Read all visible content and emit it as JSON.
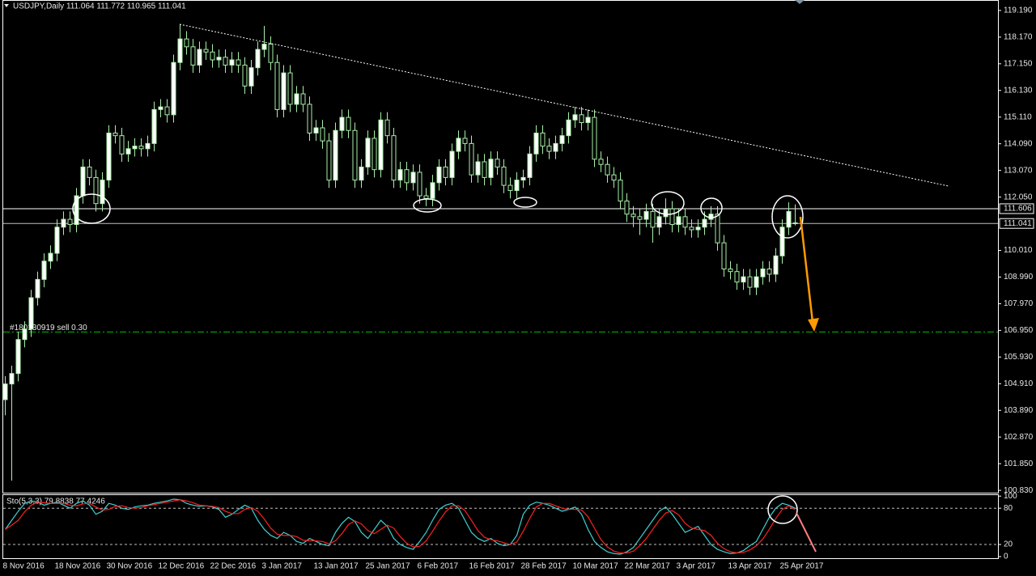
{
  "chart_data": [
    {
      "type": "candlestick",
      "title": "USDJPY,Daily  111.064 111.772 110.965 111.041",
      "categories": [
        "8 Nov 2016",
        null,
        null,
        null,
        null,
        null,
        null,
        null,
        "18 Nov 2016",
        null,
        null,
        null,
        null,
        null,
        null,
        null,
        "30 Nov 2016",
        null,
        null,
        null,
        null,
        null,
        null,
        null,
        "12 Dec 2016",
        null,
        null,
        null,
        null,
        null,
        null,
        null,
        "22 Dec 2016",
        null,
        null,
        null,
        null,
        null,
        null,
        null,
        "3 Jan 2017",
        null,
        null,
        null,
        null,
        null,
        null,
        null,
        "13 Jan 2017",
        null,
        null,
        null,
        null,
        null,
        null,
        null,
        "25 Jan 2017",
        null,
        null,
        null,
        null,
        null,
        null,
        null,
        "6 Feb 2017",
        null,
        null,
        null,
        null,
        null,
        null,
        null,
        "16 Feb 2017",
        null,
        null,
        null,
        null,
        null,
        null,
        null,
        "28 Feb 2017",
        null,
        null,
        null,
        null,
        null,
        null,
        null,
        "10 Mar 2017",
        null,
        null,
        null,
        null,
        null,
        null,
        null,
        "22 Mar 2017",
        null,
        null,
        null,
        null,
        null,
        null,
        null,
        "3 Apr 2017",
        null,
        null,
        null,
        null,
        null,
        null,
        null,
        "13 Apr 2017",
        null,
        null,
        null,
        null,
        null,
        null,
        null,
        "25 Apr 2017",
        null,
        null
      ],
      "open": [
        104.3,
        104.9,
        105.3,
        106.6,
        107.0,
        108.2,
        108.9,
        109.6,
        109.9,
        110.9,
        111.2,
        111.0,
        112.1,
        113.2,
        112.8,
        111.8,
        112.7,
        114.5,
        114.4,
        113.7,
        113.9,
        114.0,
        113.9,
        114.1,
        115.4,
        115.5,
        115.2,
        117.2,
        118.1,
        117.8,
        117.1,
        117.7,
        117.6,
        117.3,
        117.4,
        117.1,
        117.3,
        117.1,
        116.3,
        117.0,
        117.7,
        117.9,
        117.2,
        115.4,
        116.8,
        115.6,
        116.0,
        115.6,
        114.5,
        114.7,
        114.2,
        112.7,
        114.6,
        115.1,
        114.6,
        112.7,
        113.2,
        114.3,
        113.1,
        115.0,
        114.4,
        112.7,
        113.1,
        112.6,
        113.0,
        112.1,
        112.0,
        112.6,
        113.2,
        112.8,
        113.8,
        114.3,
        114.1,
        112.9,
        113.4,
        112.8,
        113.5,
        113.2,
        112.5,
        112.3,
        112.7,
        112.8,
        113.7,
        114.5,
        114.0,
        113.8,
        114.1,
        114.4,
        115.0,
        115.2,
        114.9,
        115.1,
        113.5,
        113.3,
        112.9,
        112.7,
        111.9,
        111.4,
        111.3,
        111.2,
        111.5,
        110.9,
        111.3,
        111.6,
        111.0,
        111.3,
        110.9,
        110.8,
        110.9,
        111.2,
        111.4,
        110.3,
        109.3,
        109.2,
        108.8,
        109.0,
        108.6,
        109.0,
        109.3,
        109.1,
        109.8,
        110.9,
        111.064
      ],
      "high": [
        105.2,
        105.6,
        106.9,
        107.3,
        108.5,
        109.2,
        109.9,
        110.2,
        111.2,
        111.5,
        111.5,
        112.4,
        113.5,
        113.5,
        113.1,
        113.0,
        114.8,
        114.8,
        114.7,
        114.2,
        114.3,
        114.3,
        114.4,
        115.7,
        115.8,
        115.8,
        117.5,
        118.66,
        118.4,
        118.1,
        118.0,
        118.0,
        117.9,
        117.7,
        117.7,
        117.6,
        117.6,
        117.4,
        117.3,
        118.0,
        118.6,
        118.2,
        117.5,
        117.1,
        117.1,
        116.3,
        116.3,
        115.9,
        115.0,
        115.0,
        114.5,
        114.9,
        115.4,
        115.4,
        114.9,
        113.5,
        114.6,
        114.6,
        115.3,
        115.3,
        114.7,
        113.4,
        113.4,
        113.3,
        113.3,
        112.4,
        112.9,
        113.5,
        113.5,
        114.1,
        114.6,
        114.6,
        114.4,
        113.7,
        113.7,
        113.8,
        113.8,
        113.5,
        112.8,
        113.0,
        113.1,
        114.0,
        114.8,
        114.8,
        114.3,
        114.4,
        114.7,
        115.3,
        115.5,
        115.5,
        115.4,
        115.4,
        113.8,
        113.6,
        113.2,
        113.0,
        112.2,
        111.7,
        111.6,
        111.8,
        111.8,
        111.6,
        112.0,
        111.9,
        111.6,
        111.6,
        111.2,
        111.2,
        111.5,
        111.7,
        111.7,
        110.6,
        109.6,
        109.5,
        109.3,
        109.3,
        109.3,
        109.6,
        109.6,
        110.1,
        111.2,
        111.85,
        111.772
      ],
      "low": [
        103.7,
        101.2,
        105.0,
        106.3,
        106.7,
        107.9,
        108.6,
        109.3,
        109.6,
        110.6,
        110.7,
        110.7,
        111.8,
        112.5,
        111.5,
        111.5,
        112.4,
        114.1,
        113.4,
        113.4,
        113.6,
        113.6,
        113.6,
        113.8,
        115.1,
        114.9,
        114.9,
        116.9,
        117.5,
        116.8,
        116.8,
        117.3,
        117.0,
        117.0,
        116.8,
        116.8,
        116.8,
        116.0,
        116.0,
        116.7,
        117.4,
        116.9,
        115.1,
        115.1,
        115.3,
        115.3,
        115.3,
        114.2,
        114.2,
        113.9,
        112.4,
        112.4,
        114.3,
        114.3,
        112.4,
        112.4,
        112.9,
        112.8,
        112.8,
        114.1,
        112.4,
        112.4,
        112.3,
        112.3,
        111.8,
        111.7,
        111.7,
        112.3,
        112.5,
        112.5,
        113.5,
        113.8,
        112.6,
        112.6,
        112.5,
        112.5,
        112.9,
        112.2,
        112.0,
        112.0,
        112.4,
        112.5,
        113.4,
        113.7,
        113.5,
        113.5,
        113.8,
        114.1,
        114.7,
        114.6,
        114.6,
        113.2,
        113.0,
        112.6,
        112.4,
        111.6,
        111.1,
        110.9,
        110.6,
        110.9,
        110.3,
        110.6,
        111.0,
        110.7,
        110.7,
        110.6,
        110.5,
        110.5,
        110.6,
        110.9,
        110.0,
        109.0,
        108.9,
        108.5,
        108.5,
        108.3,
        108.3,
        108.7,
        108.8,
        108.8,
        109.5,
        110.6,
        110.965
      ],
      "close": [
        104.9,
        105.3,
        106.6,
        107.0,
        108.2,
        108.9,
        109.6,
        109.9,
        110.9,
        111.2,
        111.0,
        112.1,
        113.2,
        112.8,
        111.8,
        112.7,
        114.5,
        114.4,
        113.7,
        113.9,
        114.0,
        113.9,
        114.1,
        115.4,
        115.5,
        115.2,
        117.2,
        118.1,
        117.8,
        117.1,
        117.7,
        117.6,
        117.3,
        117.4,
        117.1,
        117.3,
        117.1,
        116.3,
        117.0,
        117.7,
        117.9,
        117.2,
        115.4,
        116.8,
        115.6,
        116.0,
        115.6,
        114.5,
        114.7,
        114.2,
        112.7,
        114.6,
        115.1,
        114.6,
        112.7,
        113.2,
        114.3,
        113.1,
        115.0,
        114.4,
        112.7,
        113.1,
        112.6,
        113.0,
        112.1,
        112.0,
        112.6,
        113.2,
        112.8,
        113.8,
        114.3,
        114.1,
        112.9,
        113.4,
        112.8,
        113.5,
        113.2,
        112.5,
        112.3,
        112.7,
        112.8,
        113.7,
        114.5,
        114.0,
        113.8,
        114.1,
        114.4,
        115.0,
        115.2,
        114.9,
        115.1,
        113.5,
        113.3,
        112.9,
        112.7,
        111.9,
        111.4,
        111.3,
        111.2,
        111.5,
        110.9,
        111.3,
        111.6,
        111.0,
        111.3,
        110.9,
        110.8,
        110.9,
        111.2,
        111.4,
        110.3,
        109.3,
        109.2,
        108.8,
        109.0,
        108.6,
        109.0,
        109.3,
        109.1,
        109.8,
        110.9,
        111.5,
        111.041
      ],
      "up_color": "#ffffff",
      "down_color": "#000000",
      "wick_color": "#a8f0a8",
      "ylim": [
        100.71,
        119.59
      ],
      "yticks": [
        {
          "value": 119.19,
          "label": "119.190"
        },
        {
          "value": 118.17,
          "label": "118.170"
        },
        {
          "value": 117.15,
          "label": "117.150"
        },
        {
          "value": 116.13,
          "label": "116.130"
        },
        {
          "value": 115.11,
          "label": "115.110"
        },
        {
          "value": 114.09,
          "label": "114.090"
        },
        {
          "value": 113.07,
          "label": "113.070"
        },
        {
          "value": 112.05,
          "label": "112.050"
        },
        {
          "value": 110.01,
          "label": "110.010"
        },
        {
          "value": 108.99,
          "label": "108.990"
        },
        {
          "value": 107.97,
          "label": "107.970"
        },
        {
          "value": 106.95,
          "label": "106.950"
        },
        {
          "value": 105.93,
          "label": "105.930"
        },
        {
          "value": 104.91,
          "label": "104.910"
        },
        {
          "value": 103.89,
          "label": "103.890"
        },
        {
          "value": 102.87,
          "label": "102.870"
        },
        {
          "value": 101.85,
          "label": "101.850"
        },
        {
          "value": 100.83,
          "label": "100.830"
        }
      ],
      "hlines": [
        111.606,
        111.041
      ],
      "order_line": {
        "value": 106.89,
        "label": "#180130919 sell 0.30",
        "color": "#00c000"
      }
    },
    {
      "type": "line",
      "title": "Sto(5,3,3) 79.8838 77.4246",
      "series": [
        {
          "color": "#40d0d0",
          "values": [
            45,
            60,
            75,
            88,
            92,
            90,
            85,
            88,
            90,
            85,
            80,
            88,
            92,
            85,
            70,
            75,
            88,
            85,
            80,
            78,
            82,
            84,
            85,
            88,
            90,
            92,
            95,
            94,
            88,
            85,
            83,
            84,
            82,
            78,
            65,
            70,
            78,
            85,
            80,
            60,
            45,
            35,
            30,
            40,
            35,
            25,
            22,
            30,
            25,
            20,
            18,
            40,
            55,
            65,
            58,
            40,
            30,
            45,
            60,
            50,
            30,
            20,
            15,
            12,
            25,
            40,
            60,
            78,
            85,
            88,
            80,
            60,
            40,
            30,
            25,
            30,
            22,
            18,
            20,
            35,
            70,
            85,
            90,
            88,
            85,
            80,
            75,
            78,
            82,
            70,
            45,
            25,
            15,
            8,
            5,
            4,
            8,
            15,
            30,
            45,
            60,
            75,
            82,
            70,
            55,
            40,
            45,
            50,
            35,
            20,
            12,
            8,
            5,
            6,
            10,
            18,
            25,
            45,
            65,
            80,
            88,
            85,
            79.8838
          ]
        },
        {
          "color": "#ff2020",
          "values": [
            45,
            52,
            60,
            74,
            85,
            90,
            89,
            88,
            88,
            88,
            85,
            84,
            87,
            88,
            82,
            77,
            78,
            83,
            84,
            81,
            80,
            81,
            84,
            86,
            88,
            90,
            92,
            94,
            92,
            89,
            85,
            84,
            83,
            81,
            75,
            71,
            71,
            78,
            81,
            75,
            62,
            47,
            37,
            35,
            35,
            33,
            27,
            26,
            26,
            25,
            21,
            26,
            38,
            53,
            59,
            54,
            43,
            38,
            45,
            52,
            47,
            33,
            22,
            16,
            17,
            26,
            42,
            59,
            74,
            84,
            84,
            76,
            60,
            43,
            32,
            28,
            26,
            23,
            20,
            24,
            42,
            63,
            82,
            88,
            88,
            84,
            80,
            78,
            78,
            77,
            66,
            47,
            28,
            16,
            9,
            6,
            6,
            9,
            18,
            30,
            45,
            60,
            72,
            76,
            69,
            55,
            47,
            45,
            43,
            35,
            22,
            13,
            8,
            6,
            7,
            11,
            18,
            29,
            45,
            63,
            78,
            84,
            77.4246
          ]
        }
      ],
      "ylim": [
        -4,
        103
      ],
      "yticks": [
        100,
        80,
        20,
        0
      ],
      "levels": [
        80,
        20
      ]
    }
  ]
}
